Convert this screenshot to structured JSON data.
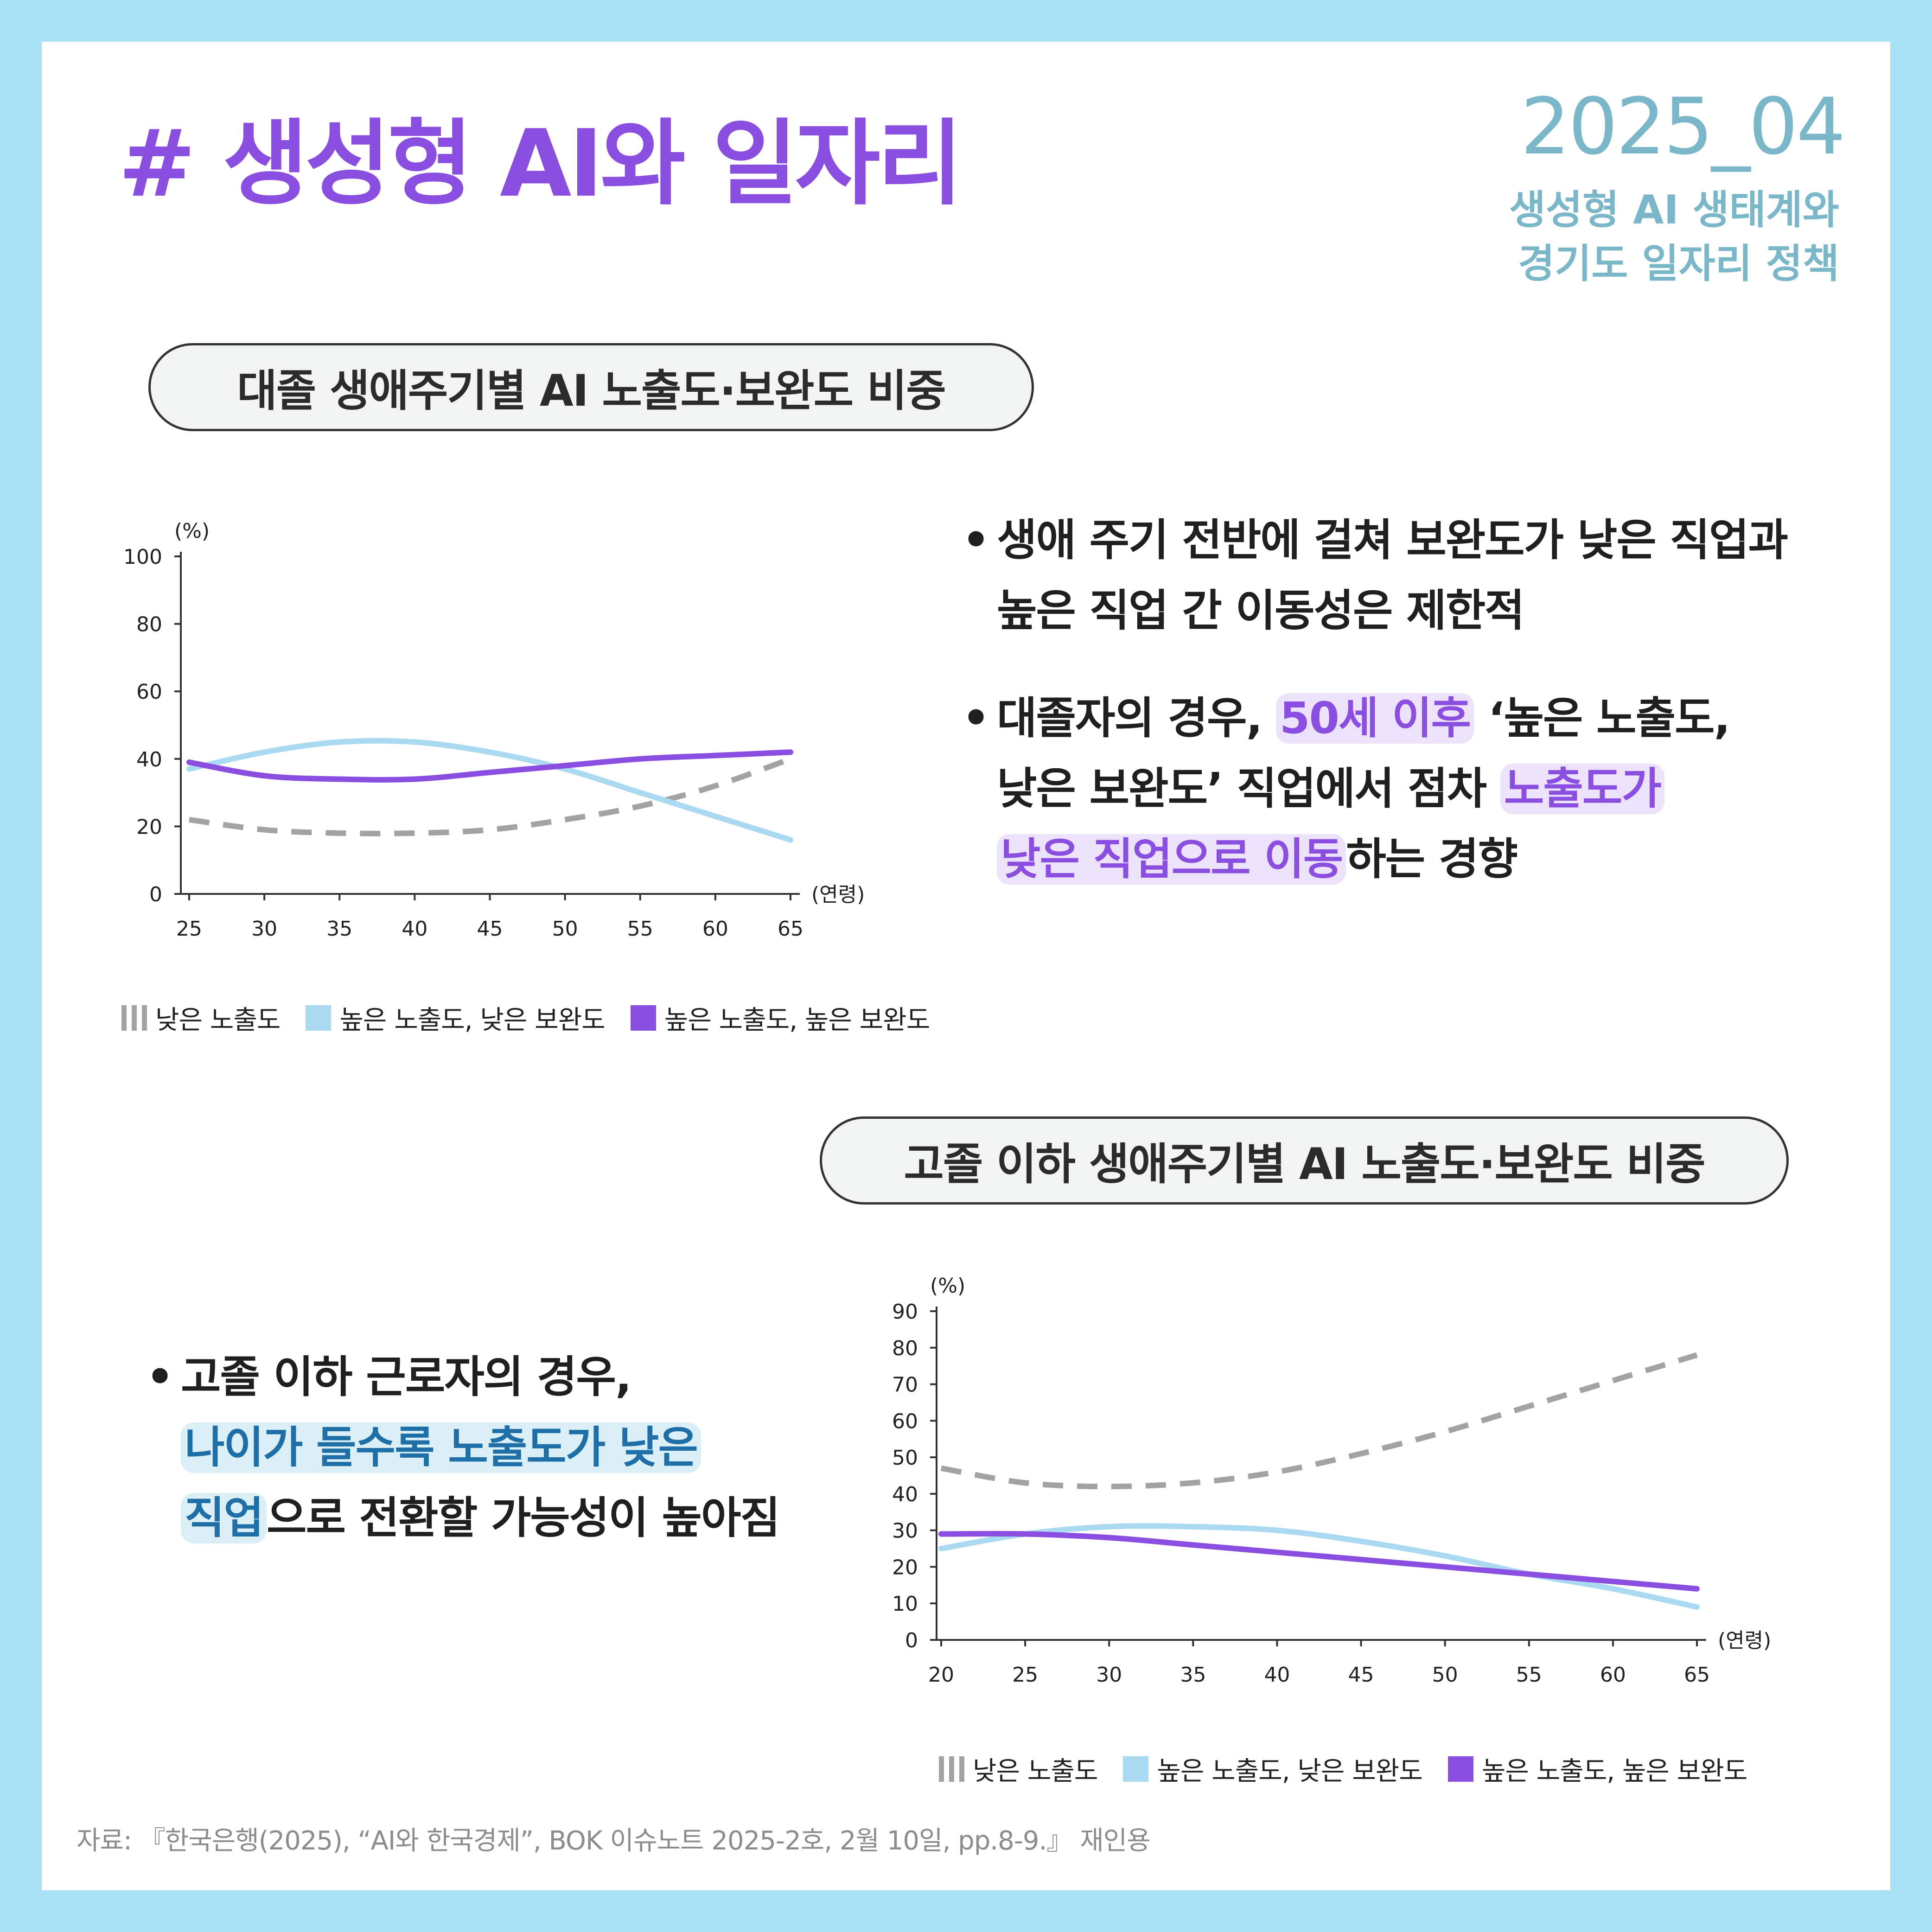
{
  "header": {
    "title": "# 생성형 AI와 일자리",
    "issue": "2025_04",
    "subtitle_lines": [
      "생성형 AI 생태계와",
      "경기도 일자리 정책"
    ]
  },
  "section1": {
    "title": "대졸 생애주기별  AI 노출도·보완도 비중",
    "bullets": {
      "b1_l1": "생애 주기 전반에 걸쳐 보완도가 낮은 직업과",
      "b1_l2": "높은 직업 간 이동성은 제한적",
      "b2_p1": "대졸자의 경우, ",
      "b2_hl1": "50세 이후",
      "b2_p2": " ‘높은 노출도,",
      "b2_p3": "낮은 보완도’ 직업에서 점차 ",
      "b2_hl2": "노출도가",
      "b2_hl3": "낮은 직업으로 이동",
      "b2_p4": "하는 경향"
    }
  },
  "section2": {
    "title": "고졸 이하 생애주기별  AI 노출도·보완도 비중",
    "bullets": {
      "p1": "고졸 이하 근로자의 경우,",
      "hl1": "나이가 들수록 노출도가 낮은",
      "hl2": "직업",
      "p2": "으로 전환할 가능성이 높아짐"
    }
  },
  "legend": {
    "low": "낮은 노출도",
    "high_low": "높은 노출도, 낮은 보완도",
    "high_high": "높은 노출도, 높은 보완도"
  },
  "colors": {
    "low": "#a3a3a3",
    "high_low": "#a9daf2",
    "high_high": "#8a4fe0",
    "title": "#8a4fe0",
    "issue": "#7ab8c9"
  },
  "source": "자료: 『한국은행(2025), “AI와 한국경제”, BOK 이슈노트 2025-2호, 2월 10일, pp.8-9.』 재인용",
  "chart_data": [
    {
      "type": "line",
      "y_unit": "(%)",
      "x_unit": "(연령)",
      "ylim": [
        0,
        100
      ],
      "yticks": [
        0,
        20,
        40,
        60,
        80,
        100
      ],
      "xticks": [
        25,
        30,
        35,
        40,
        45,
        50,
        55,
        60,
        65
      ],
      "series": [
        {
          "name": "낮은 노출도",
          "style": "dashed",
          "color": "#a3a3a3",
          "points": [
            [
              25,
              22
            ],
            [
              30,
              19
            ],
            [
              35,
              18
            ],
            [
              40,
              18
            ],
            [
              45,
              19
            ],
            [
              50,
              22
            ],
            [
              55,
              26
            ],
            [
              60,
              32
            ],
            [
              65,
              40
            ]
          ]
        },
        {
          "name": "높은 노출도, 낮은 보완도",
          "style": "solid",
          "color": "#a9daf2",
          "points": [
            [
              25,
              37
            ],
            [
              30,
              42
            ],
            [
              35,
              45
            ],
            [
              40,
              45
            ],
            [
              45,
              42
            ],
            [
              50,
              37
            ],
            [
              55,
              30
            ],
            [
              60,
              23
            ],
            [
              65,
              16
            ]
          ]
        },
        {
          "name": "높은 노출도, 높은 보완도",
          "style": "solid",
          "color": "#8a4fe0",
          "points": [
            [
              25,
              39
            ],
            [
              30,
              35
            ],
            [
              35,
              34
            ],
            [
              40,
              34
            ],
            [
              45,
              36
            ],
            [
              50,
              38
            ],
            [
              55,
              40
            ],
            [
              60,
              41
            ],
            [
              65,
              42
            ]
          ]
        }
      ]
    },
    {
      "type": "line",
      "y_unit": "(%)",
      "x_unit": "(연령)",
      "ylim": [
        0,
        90
      ],
      "yticks": [
        0,
        10,
        20,
        30,
        40,
        50,
        60,
        70,
        80,
        90
      ],
      "xticks": [
        20,
        25,
        30,
        35,
        40,
        45,
        50,
        55,
        60,
        65
      ],
      "series": [
        {
          "name": "낮은 노출도",
          "style": "dashed",
          "color": "#a3a3a3",
          "points": [
            [
              20,
              47
            ],
            [
              25,
              43
            ],
            [
              30,
              42
            ],
            [
              35,
              43
            ],
            [
              40,
              46
            ],
            [
              45,
              51
            ],
            [
              50,
              57
            ],
            [
              55,
              64
            ],
            [
              60,
              71
            ],
            [
              65,
              78
            ]
          ]
        },
        {
          "name": "높은 노출도, 낮은 보완도",
          "style": "solid",
          "color": "#a9daf2",
          "points": [
            [
              20,
              25
            ],
            [
              25,
              29
            ],
            [
              30,
              31
            ],
            [
              35,
              31
            ],
            [
              40,
              30
            ],
            [
              45,
              27
            ],
            [
              50,
              23
            ],
            [
              55,
              18
            ],
            [
              60,
              14
            ],
            [
              65,
              9
            ]
          ]
        },
        {
          "name": "높은 노출도, 높은 보완도",
          "style": "solid",
          "color": "#8a4fe0",
          "points": [
            [
              20,
              29
            ],
            [
              25,
              29
            ],
            [
              30,
              28
            ],
            [
              35,
              26
            ],
            [
              40,
              24
            ],
            [
              45,
              22
            ],
            [
              50,
              20
            ],
            [
              55,
              18
            ],
            [
              60,
              16
            ],
            [
              65,
              14
            ]
          ]
        }
      ]
    }
  ]
}
